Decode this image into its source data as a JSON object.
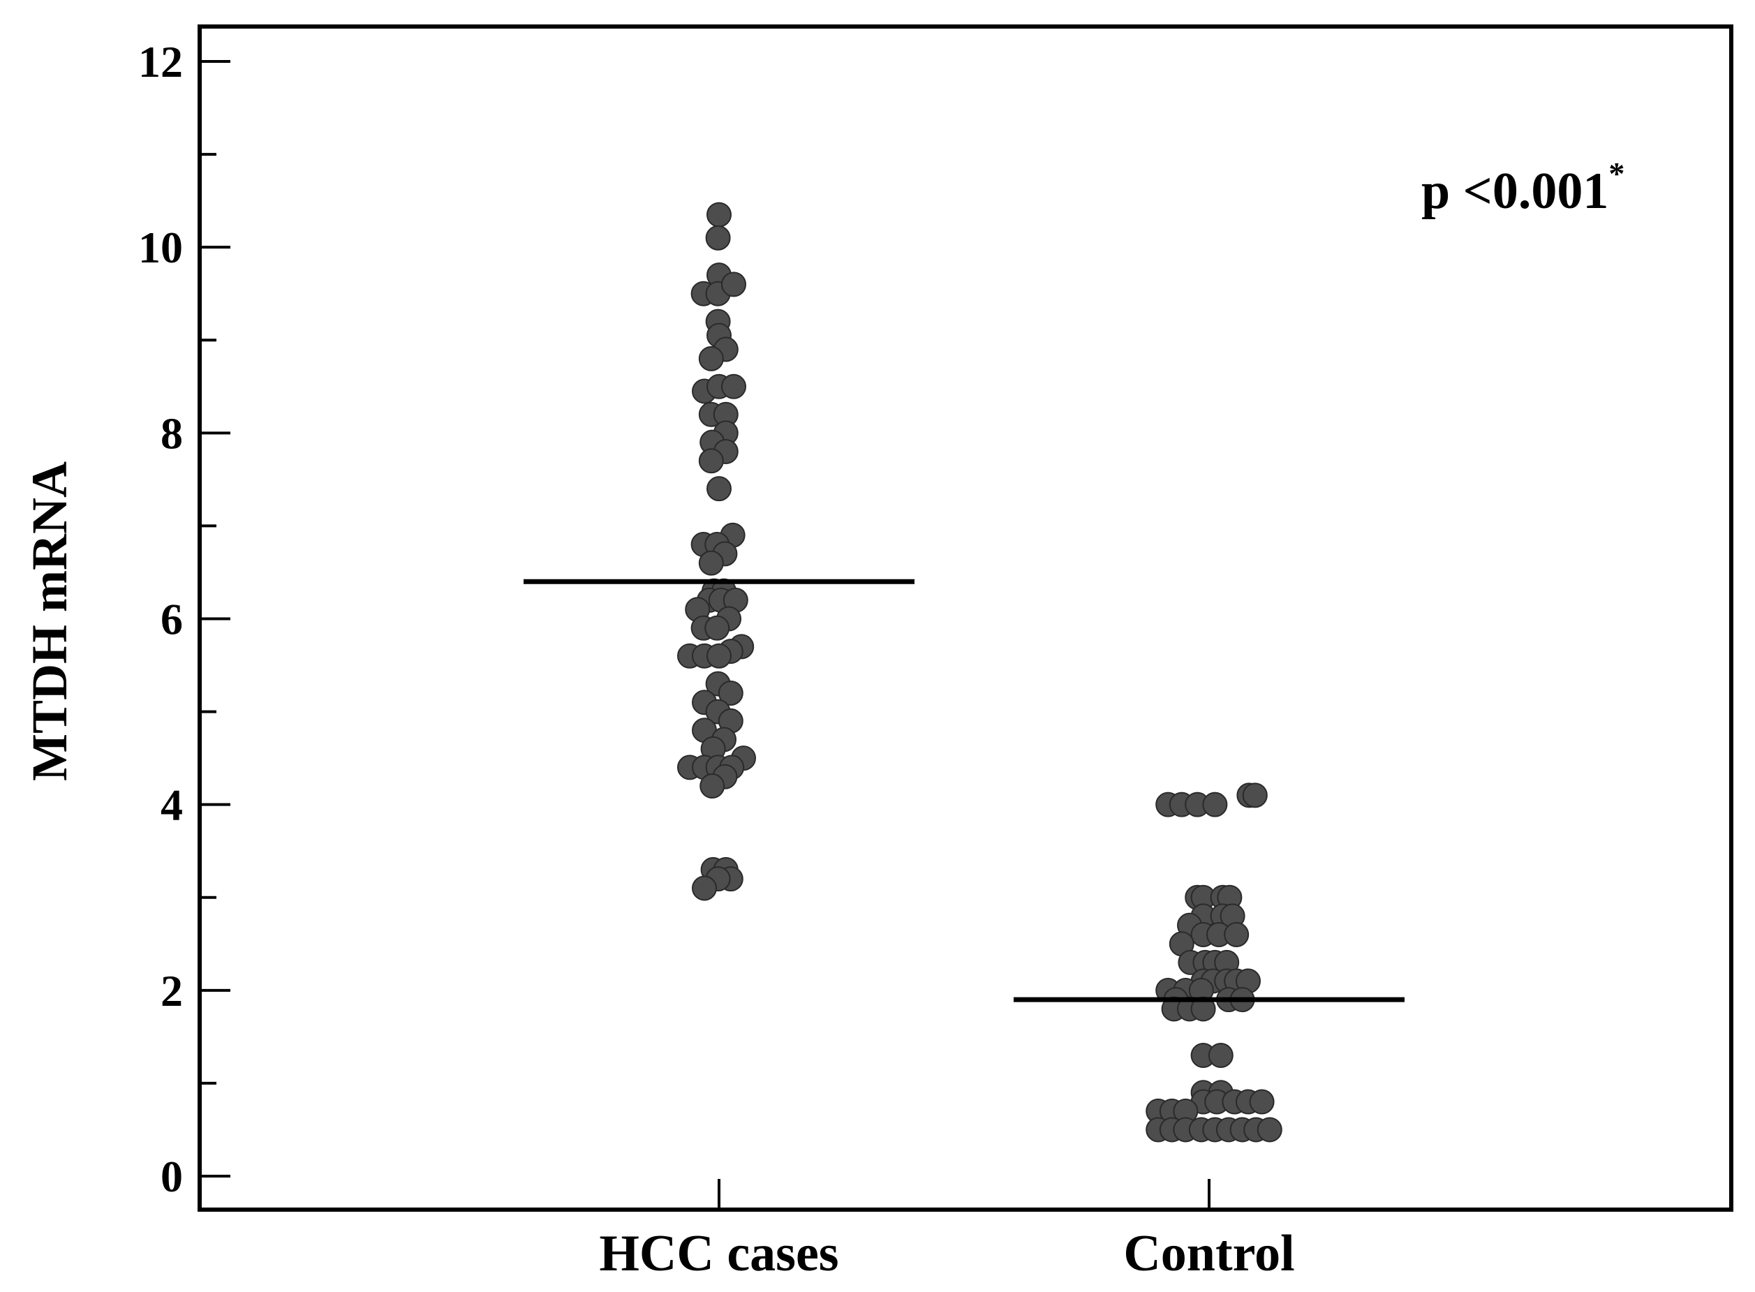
{
  "chart_data": {
    "type": "scatter",
    "subtype": "dot-plot (beeswarm) with mean lines",
    "title": "",
    "xlabel": "",
    "ylabel": "MTDH mRNA",
    "ylim": [
      -0.35,
      12.4
    ],
    "yticks": [
      0,
      2,
      4,
      6,
      8,
      10,
      12
    ],
    "yminor_step": 1,
    "grid": false,
    "annotation": {
      "text": "p <0.001",
      "superscript": "*",
      "placement": "top-right"
    },
    "categories": [
      "HCC cases",
      "Control"
    ],
    "series": [
      {
        "name": "HCC cases",
        "mean": 6.4,
        "points": [
          {
            "x": 0.0,
            "y": 10.35
          },
          {
            "x": -0.01,
            "y": 10.1
          },
          {
            "x": -0.16,
            "y": 9.5
          },
          {
            "x": 0.0,
            "y": 9.7
          },
          {
            "x": -0.01,
            "y": 9.5
          },
          {
            "x": 0.15,
            "y": 9.6
          },
          {
            "x": -0.01,
            "y": 9.2
          },
          {
            "x": 0.0,
            "y": 9.05
          },
          {
            "x": 0.07,
            "y": 8.9
          },
          {
            "x": -0.08,
            "y": 8.8
          },
          {
            "x": -0.15,
            "y": 8.45
          },
          {
            "x": 0.0,
            "y": 8.5
          },
          {
            "x": 0.15,
            "y": 8.5
          },
          {
            "x": -0.08,
            "y": 8.2
          },
          {
            "x": 0.07,
            "y": 8.2
          },
          {
            "x": 0.07,
            "y": 8.0
          },
          {
            "x": -0.07,
            "y": 7.9
          },
          {
            "x": 0.07,
            "y": 7.8
          },
          {
            "x": -0.08,
            "y": 7.7
          },
          {
            "x": 0.0,
            "y": 7.4
          },
          {
            "x": 0.14,
            "y": 6.9
          },
          {
            "x": -0.16,
            "y": 6.8
          },
          {
            "x": -0.02,
            "y": 6.8
          },
          {
            "x": 0.06,
            "y": 6.7
          },
          {
            "x": -0.08,
            "y": 6.6
          },
          {
            "x": -0.05,
            "y": 6.3
          },
          {
            "x": 0.05,
            "y": 6.3
          },
          {
            "x": -0.1,
            "y": 6.2
          },
          {
            "x": 0.02,
            "y": 6.2
          },
          {
            "x": 0.17,
            "y": 6.2
          },
          {
            "x": -0.22,
            "y": 6.1
          },
          {
            "x": 0.1,
            "y": 6.0
          },
          {
            "x": -0.16,
            "y": 5.9
          },
          {
            "x": -0.02,
            "y": 5.9
          },
          {
            "x": 0.23,
            "y": 5.7
          },
          {
            "x": 0.12,
            "y": 5.65
          },
          {
            "x": -0.3,
            "y": 5.6
          },
          {
            "x": -0.15,
            "y": 5.6
          },
          {
            "x": 0.0,
            "y": 5.6
          },
          {
            "x": -0.01,
            "y": 5.3
          },
          {
            "x": 0.12,
            "y": 5.2
          },
          {
            "x": -0.15,
            "y": 5.1
          },
          {
            "x": -0.01,
            "y": 5.0
          },
          {
            "x": 0.12,
            "y": 4.9
          },
          {
            "x": -0.15,
            "y": 4.8
          },
          {
            "x": 0.05,
            "y": 4.7
          },
          {
            "x": -0.06,
            "y": 4.6
          },
          {
            "x": 0.25,
            "y": 4.5
          },
          {
            "x": -0.3,
            "y": 4.4
          },
          {
            "x": -0.15,
            "y": 4.4
          },
          {
            "x": -0.01,
            "y": 4.4
          },
          {
            "x": 0.13,
            "y": 4.4
          },
          {
            "x": 0.06,
            "y": 4.3
          },
          {
            "x": -0.07,
            "y": 4.2
          },
          {
            "x": -0.06,
            "y": 3.3
          },
          {
            "x": 0.07,
            "y": 3.3
          },
          {
            "x": 0.12,
            "y": 3.2
          },
          {
            "x": -0.01,
            "y": 3.2
          },
          {
            "x": -0.15,
            "y": 3.1
          }
        ]
      },
      {
        "name": "Control",
        "mean": 1.9,
        "points": [
          {
            "x": 0.41,
            "y": 4.1
          },
          {
            "x": 0.47,
            "y": 4.1
          },
          {
            "x": -0.42,
            "y": 4.0
          },
          {
            "x": -0.28,
            "y": 4.0
          },
          {
            "x": -0.12,
            "y": 4.0
          },
          {
            "x": 0.06,
            "y": 4.0
          },
          {
            "x": -0.12,
            "y": 3.0
          },
          {
            "x": -0.06,
            "y": 3.0
          },
          {
            "x": 0.14,
            "y": 3.0
          },
          {
            "x": 0.21,
            "y": 3.0
          },
          {
            "x": -0.06,
            "y": 2.8
          },
          {
            "x": 0.14,
            "y": 2.8
          },
          {
            "x": 0.24,
            "y": 2.8
          },
          {
            "x": -0.2,
            "y": 2.7
          },
          {
            "x": -0.06,
            "y": 2.6
          },
          {
            "x": 0.1,
            "y": 2.6
          },
          {
            "x": 0.28,
            "y": 2.6
          },
          {
            "x": -0.28,
            "y": 2.5
          },
          {
            "x": -0.19,
            "y": 2.3
          },
          {
            "x": -0.04,
            "y": 2.3
          },
          {
            "x": 0.06,
            "y": 2.3
          },
          {
            "x": 0.18,
            "y": 2.3
          },
          {
            "x": -0.06,
            "y": 2.1
          },
          {
            "x": 0.04,
            "y": 2.1
          },
          {
            "x": 0.18,
            "y": 2.1
          },
          {
            "x": 0.28,
            "y": 2.1
          },
          {
            "x": 0.4,
            "y": 2.1
          },
          {
            "x": -0.42,
            "y": 2.0
          },
          {
            "x": -0.24,
            "y": 2.0
          },
          {
            "x": -0.08,
            "y": 2.0
          },
          {
            "x": -0.34,
            "y": 1.9
          },
          {
            "x": 0.2,
            "y": 1.9
          },
          {
            "x": 0.34,
            "y": 1.9
          },
          {
            "x": -0.36,
            "y": 1.8
          },
          {
            "x": -0.2,
            "y": 1.8
          },
          {
            "x": -0.06,
            "y": 1.8
          },
          {
            "x": -0.06,
            "y": 1.3
          },
          {
            "x": 0.12,
            "y": 1.3
          },
          {
            "x": -0.06,
            "y": 0.9
          },
          {
            "x": 0.12,
            "y": 0.9
          },
          {
            "x": -0.06,
            "y": 0.8
          },
          {
            "x": 0.08,
            "y": 0.8
          },
          {
            "x": 0.26,
            "y": 0.8
          },
          {
            "x": 0.4,
            "y": 0.8
          },
          {
            "x": 0.54,
            "y": 0.8
          },
          {
            "x": -0.52,
            "y": 0.7
          },
          {
            "x": -0.38,
            "y": 0.7
          },
          {
            "x": -0.24,
            "y": 0.7
          },
          {
            "x": -0.52,
            "y": 0.5
          },
          {
            "x": -0.38,
            "y": 0.5
          },
          {
            "x": -0.24,
            "y": 0.5
          },
          {
            "x": -0.08,
            "y": 0.5
          },
          {
            "x": 0.06,
            "y": 0.5
          },
          {
            "x": 0.2,
            "y": 0.5
          },
          {
            "x": 0.34,
            "y": 0.5
          },
          {
            "x": 0.48,
            "y": 0.5
          },
          {
            "x": 0.62,
            "y": 0.5
          }
        ]
      }
    ],
    "colors": {
      "point": "#4d4d4d",
      "point_edge": "#2a2a2a",
      "axis": "#000000",
      "mean_line": "#000000",
      "background": "#ffffff"
    }
  }
}
